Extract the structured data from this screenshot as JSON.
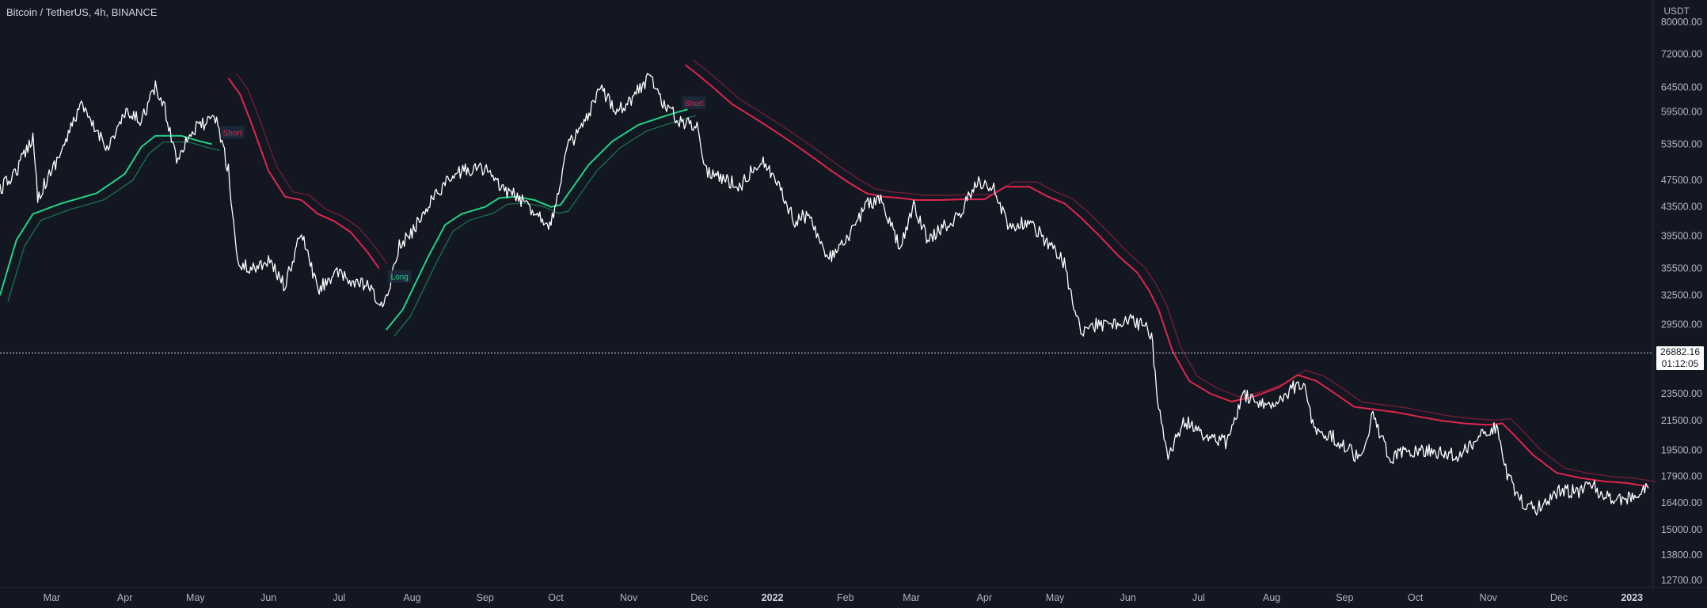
{
  "header": {
    "symbol_title": "Bitcoin / TetherUS, 4h, BINANCE",
    "currency": "USDT"
  },
  "last_price": {
    "value": "26882.16",
    "countdown": "01:12:05"
  },
  "colors": {
    "background": "#131722",
    "price_line": "#ffffff",
    "long_band": "#22d386",
    "short_band": "#e0254d",
    "axis_text": "#b2b5be"
  },
  "chart_data": {
    "type": "line",
    "y_scale": "log",
    "ylim": [
      12700,
      80000
    ],
    "y_ticks": [
      "80000.00",
      "72000.00",
      "64500.00",
      "59500.00",
      "53500.00",
      "47500.00",
      "43500.00",
      "39500.00",
      "35500.00",
      "32500.00",
      "29500.00",
      "23500.00",
      "21500.00",
      "19500.00",
      "17900.00",
      "16400.00",
      "15000.00",
      "13800.00",
      "12700.00"
    ],
    "x_ticks": [
      {
        "label": "Mar",
        "date": "2021-03-01"
      },
      {
        "label": "Apr",
        "date": "2021-04-01"
      },
      {
        "label": "May",
        "date": "2021-05-01"
      },
      {
        "label": "Jun",
        "date": "2021-06-01"
      },
      {
        "label": "Jul",
        "date": "2021-07-01"
      },
      {
        "label": "Aug",
        "date": "2021-08-01"
      },
      {
        "label": "Sep",
        "date": "2021-09-01"
      },
      {
        "label": "Oct",
        "date": "2021-10-01"
      },
      {
        "label": "Nov",
        "date": "2021-11-01"
      },
      {
        "label": "Dec",
        "date": "2021-12-01"
      },
      {
        "label": "2022",
        "date": "2022-01-01",
        "bold": true
      },
      {
        "label": "Feb",
        "date": "2022-02-01"
      },
      {
        "label": "Mar",
        "date": "2022-03-01"
      },
      {
        "label": "Apr",
        "date": "2022-04-01"
      },
      {
        "label": "May",
        "date": "2022-05-01"
      },
      {
        "label": "Jun",
        "date": "2022-06-01"
      },
      {
        "label": "Jul",
        "date": "2022-07-01"
      },
      {
        "label": "Aug",
        "date": "2022-08-01"
      },
      {
        "label": "Sep",
        "date": "2022-09-01"
      },
      {
        "label": "Oct",
        "date": "2022-10-01"
      },
      {
        "label": "Nov",
        "date": "2022-11-01"
      },
      {
        "label": "Dec",
        "date": "2022-12-01"
      },
      {
        "label": "2023",
        "date": "2023-01-01",
        "bold": true
      }
    ],
    "current_price": 26882.16,
    "series": [
      {
        "role": "price",
        "x": [
          "2021-02-07",
          "2021-02-14",
          "2021-02-21",
          "2021-02-23",
          "2021-03-01",
          "2021-03-08",
          "2021-03-13",
          "2021-03-18",
          "2021-03-25",
          "2021-04-01",
          "2021-04-08",
          "2021-04-14",
          "2021-04-18",
          "2021-04-23",
          "2021-04-28",
          "2021-05-03",
          "2021-05-10",
          "2021-05-15",
          "2021-05-19",
          "2021-05-25",
          "2021-06-01",
          "2021-06-08",
          "2021-06-15",
          "2021-06-22",
          "2021-06-29",
          "2021-07-06",
          "2021-07-13",
          "2021-07-20",
          "2021-07-26",
          "2021-08-01",
          "2021-08-08",
          "2021-08-15",
          "2021-08-22",
          "2021-09-01",
          "2021-09-07",
          "2021-09-12",
          "2021-09-20",
          "2021-09-29",
          "2021-10-06",
          "2021-10-13",
          "2021-10-20",
          "2021-10-27",
          "2021-11-01",
          "2021-11-10",
          "2021-11-16",
          "2021-11-23",
          "2021-11-30",
          "2021-12-04",
          "2021-12-10",
          "2021-12-18",
          "2021-12-27",
          "2022-01-05",
          "2022-01-10",
          "2022-01-17",
          "2022-01-24",
          "2022-02-01",
          "2022-02-10",
          "2022-02-16",
          "2022-02-24",
          "2022-03-02",
          "2022-03-08",
          "2022-03-16",
          "2022-03-22",
          "2022-03-29",
          "2022-04-05",
          "2022-04-12",
          "2022-04-20",
          "2022-04-27",
          "2022-05-05",
          "2022-05-09",
          "2022-05-12",
          "2022-05-19",
          "2022-05-26",
          "2022-06-01",
          "2022-06-07",
          "2022-06-11",
          "2022-06-14",
          "2022-06-18",
          "2022-06-25",
          "2022-07-03",
          "2022-07-13",
          "2022-07-20",
          "2022-07-27",
          "2022-08-03",
          "2022-08-14",
          "2022-08-19",
          "2022-08-26",
          "2022-09-07",
          "2022-09-13",
          "2022-09-20",
          "2022-09-30",
          "2022-10-10",
          "2022-10-20",
          "2022-10-29",
          "2022-11-05",
          "2022-11-09",
          "2022-11-15",
          "2022-11-21",
          "2022-12-01",
          "2022-12-10",
          "2022-12-15",
          "2022-12-20",
          "2022-12-30",
          "2023-01-08"
        ],
        "y": [
          46000,
          49000,
          55000,
          45000,
          49000,
          55000,
          61000,
          57000,
          53000,
          59000,
          58000,
          64500,
          60000,
          51000,
          55000,
          57000,
          58000,
          49000,
          36000,
          35500,
          36500,
          33500,
          40000,
          33000,
          35000,
          34000,
          33500,
          31000,
          38000,
          40000,
          44000,
          47000,
          49000,
          49500,
          46500,
          45500,
          43500,
          41000,
          53000,
          57000,
          64000,
          60000,
          61500,
          67000,
          61000,
          57500,
          57000,
          49000,
          48000,
          46500,
          51000,
          46000,
          41500,
          42500,
          36500,
          38500,
          44000,
          44500,
          38000,
          43500,
          39000,
          41000,
          42500,
          47500,
          46000,
          40500,
          41500,
          39000,
          36000,
          31000,
          29000,
          29500,
          29500,
          30000,
          29500,
          28500,
          22500,
          19000,
          21500,
          20500,
          20000,
          23500,
          22500,
          23000,
          24500,
          21000,
          20500,
          19000,
          21800,
          19000,
          19500,
          19400,
          19100,
          20700,
          21000,
          18000,
          16500,
          16000,
          17100,
          17000,
          17400,
          16700,
          16600,
          17200
        ]
      },
      {
        "role": "long-trail",
        "x": [
          "2021-02-07",
          "2021-02-14",
          "2021-02-21",
          "2021-03-05",
          "2021-03-20",
          "2021-04-01",
          "2021-04-08",
          "2021-04-14",
          "2021-04-25",
          "2021-05-03",
          "2021-05-08"
        ],
        "y": [
          32500,
          39000,
          42500,
          44000,
          45500,
          48500,
          53000,
          55000,
          55000,
          54000,
          53500
        ]
      },
      {
        "role": "long-trail",
        "x": [
          "2021-07-21",
          "2021-07-28",
          "2021-08-08",
          "2021-08-15",
          "2021-08-22",
          "2021-09-01",
          "2021-09-07",
          "2021-09-14",
          "2021-09-22",
          "2021-09-29",
          "2021-10-03",
          "2021-10-15",
          "2021-10-25",
          "2021-11-05",
          "2021-11-15",
          "2021-11-22",
          "2021-11-26"
        ],
        "y": [
          29000,
          31000,
          37000,
          41000,
          42500,
          43500,
          44800,
          45000,
          44500,
          43500,
          43800,
          50000,
          54000,
          57000,
          58500,
          59500,
          60000
        ]
      },
      {
        "role": "short-trail",
        "x": [
          "2021-05-15",
          "2021-05-20",
          "2021-05-25",
          "2021-06-01",
          "2021-06-08",
          "2021-06-15",
          "2021-06-22",
          "2021-06-29",
          "2021-07-06",
          "2021-07-13",
          "2021-07-18"
        ],
        "y": [
          66500,
          63000,
          57000,
          49000,
          45000,
          44500,
          42500,
          41500,
          40000,
          37500,
          35500
        ]
      },
      {
        "role": "short-trail",
        "x": [
          "2021-11-25",
          "2021-12-01",
          "2021-12-08",
          "2021-12-15",
          "2021-12-22",
          "2021-12-29",
          "2022-01-05",
          "2022-01-12",
          "2022-01-19",
          "2022-01-26",
          "2022-02-03",
          "2022-02-10",
          "2022-02-17",
          "2022-02-24",
          "2022-03-03",
          "2022-03-13",
          "2022-03-23",
          "2022-04-01",
          "2022-04-10",
          "2022-04-20",
          "2022-04-28",
          "2022-05-05",
          "2022-05-12",
          "2022-05-20",
          "2022-05-28",
          "2022-06-05",
          "2022-06-10",
          "2022-06-14",
          "2022-06-20",
          "2022-06-27",
          "2022-07-06",
          "2022-07-15",
          "2022-07-25",
          "2022-08-04",
          "2022-08-12",
          "2022-08-20",
          "2022-08-28",
          "2022-09-05",
          "2022-09-14",
          "2022-09-23",
          "2022-10-02",
          "2022-10-12",
          "2022-10-22",
          "2022-11-01",
          "2022-11-07",
          "2022-11-12",
          "2022-11-20",
          "2022-11-30",
          "2022-12-10",
          "2022-12-20",
          "2022-12-30",
          "2023-01-08"
        ],
        "y": [
          69500,
          67000,
          64000,
          61000,
          59000,
          57000,
          55000,
          53000,
          51000,
          49000,
          47000,
          45500,
          45000,
          44800,
          44500,
          44500,
          44600,
          44600,
          46500,
          46500,
          45000,
          44000,
          42000,
          39500,
          37000,
          35000,
          33000,
          31000,
          27000,
          24500,
          23500,
          22900,
          23300,
          24000,
          25000,
          24500,
          23500,
          22500,
          22300,
          22100,
          21800,
          21500,
          21300,
          21200,
          21300,
          20500,
          19200,
          18100,
          17800,
          17600,
          17500,
          17300
        ]
      }
    ],
    "signals": [
      {
        "label": "Short",
        "date": "2021-05-13",
        "price": 55500,
        "type": "short"
      },
      {
        "label": "Long",
        "date": "2021-07-23",
        "price": 34500,
        "type": "long"
      },
      {
        "label": "Short",
        "date": "2021-11-25",
        "price": 61200,
        "type": "short"
      }
    ]
  }
}
